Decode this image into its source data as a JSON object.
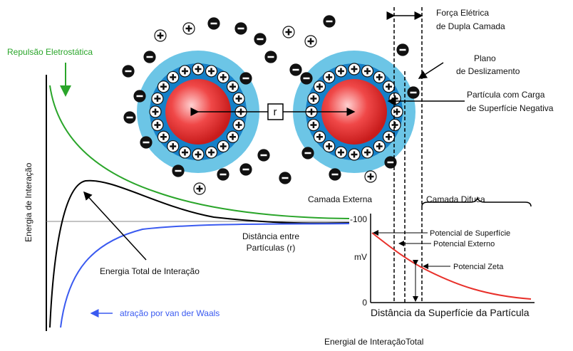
{
  "left_panel": {
    "repulsion": "Repulsão Eletrostática",
    "y_axis": "Energia de Interação",
    "total": "Energia Total de Interação",
    "attraction": "atração por van der Waals",
    "distance": [
      "Distância entre",
      "Partículas (r)"
    ],
    "caption": "Energial de InteraçãoTotal"
  },
  "particles": {
    "r": "r",
    "double_layer": [
      "Força Elétrica",
      "de Dupla Camada"
    ],
    "slip_plane": [
      "Plano",
      "de Deslizamento"
    ],
    "particle": [
      "Partícula com Carga",
      "de Superfície Negativa"
    ]
  },
  "potential_panel": {
    "outer_layer": "Camada Externa",
    "diffuse_layer": "Camada Difusa",
    "top_tick": "-100",
    "unit": "mV",
    "bottom_tick": "0",
    "surface": "Potencial de Superfície",
    "external": "Potencial Externo",
    "zeta": "Potencial Zeta",
    "x_axis": "Distância da Superfície da Partícula"
  }
}
